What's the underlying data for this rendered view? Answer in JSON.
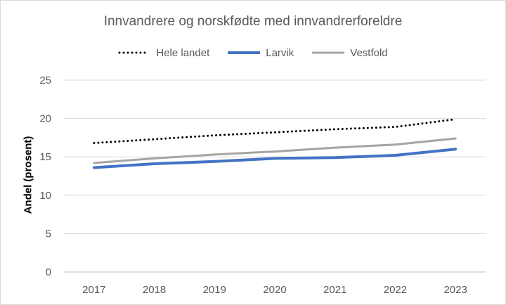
{
  "chart_data": {
    "type": "line",
    "title": "Innvandrere og norskfødte med innvandrerforeldre",
    "xlabel": "",
    "ylabel": "Andel (prosent)",
    "x": [
      "2017",
      "2018",
      "2019",
      "2020",
      "2021",
      "2022",
      "2023"
    ],
    "ylim": [
      0,
      25
    ],
    "yticks": [
      "0",
      "5",
      "10",
      "15",
      "20",
      "25"
    ],
    "grid": true,
    "legend_position": "top",
    "series": [
      {
        "name": "Hele landet",
        "values": [
          16.8,
          17.3,
          17.8,
          18.2,
          18.6,
          18.9,
          19.9
        ],
        "color": "#000000",
        "style": "dotted"
      },
      {
        "name": "Larvik",
        "values": [
          13.6,
          14.1,
          14.4,
          14.8,
          14.9,
          15.2,
          16.0
        ],
        "color": "#4472c4",
        "style": "solid"
      },
      {
        "name": "Vestfold",
        "values": [
          14.2,
          14.8,
          15.3,
          15.7,
          16.2,
          16.6,
          17.4
        ],
        "color": "#a5a5a5",
        "style": "solid"
      }
    ]
  }
}
